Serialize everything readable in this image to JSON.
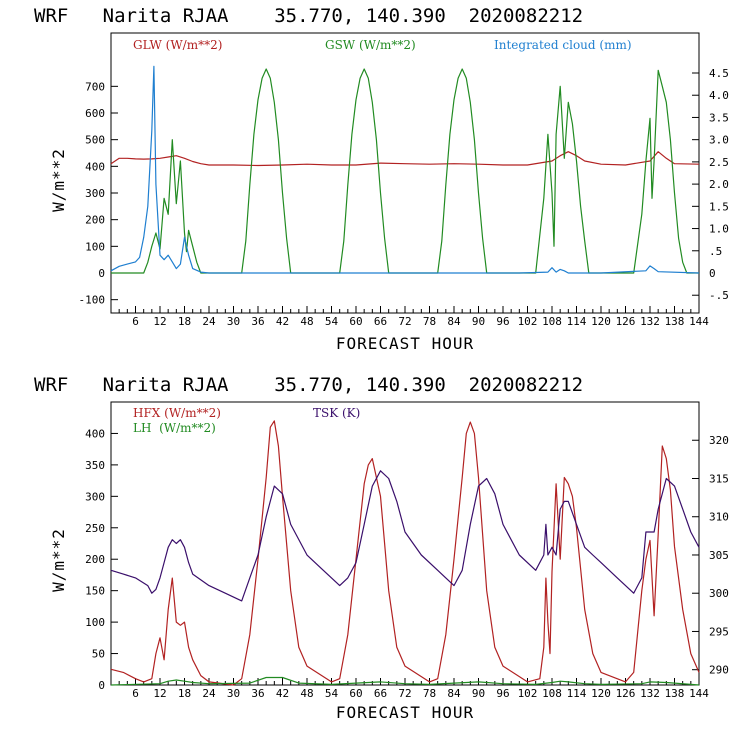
{
  "chart_data": [
    {
      "type": "line",
      "title": "WRF   Narita RJAA    35.770, 140.390  2020082212",
      "xlabel": "FORECAST HOUR",
      "ylabel": "W/m**2",
      "xlim": [
        0,
        144
      ],
      "ylim": [
        -150,
        900
      ],
      "y2lim": [
        -0.9,
        5.4
      ],
      "x_ticks": [
        6,
        12,
        18,
        24,
        30,
        36,
        42,
        48,
        54,
        60,
        66,
        72,
        78,
        84,
        90,
        96,
        102,
        108,
        114,
        120,
        126,
        132,
        138,
        144
      ],
      "y_ticks": [
        -100,
        0,
        100,
        200,
        300,
        400,
        500,
        600,
        700
      ],
      "y2_ticks": [
        -0.5,
        0,
        0.5,
        1.0,
        1.5,
        2.0,
        2.5,
        3.0,
        3.5,
        4.0,
        4.5
      ],
      "y2_tick_labels": [
        "-.5",
        "0",
        ".5",
        "1.0",
        "1.5",
        "2.0",
        "2.5",
        "3.0",
        "3.5",
        "4.0",
        "4.5"
      ],
      "series": [
        {
          "name": "GLW (W/m**2)",
          "axis": "left",
          "color": "#b22222",
          "x": [
            0,
            2,
            4,
            6,
            8,
            10,
            12,
            14,
            16,
            18,
            20,
            22,
            24,
            30,
            36,
            42,
            48,
            54,
            60,
            66,
            72,
            78,
            84,
            90,
            96,
            102,
            108,
            110,
            112,
            114,
            116,
            120,
            126,
            132,
            134,
            136,
            138,
            144
          ],
          "y": [
            410,
            430,
            430,
            428,
            427,
            428,
            430,
            435,
            440,
            430,
            418,
            410,
            405,
            405,
            403,
            405,
            408,
            405,
            405,
            412,
            410,
            408,
            410,
            408,
            405,
            405,
            420,
            440,
            455,
            440,
            420,
            408,
            405,
            420,
            455,
            430,
            410,
            408
          ]
        },
        {
          "name": "GSW (W/m**2)",
          "axis": "left",
          "color": "#228b22",
          "x": [
            0,
            8,
            9,
            10,
            11,
            12,
            13,
            14,
            15,
            16,
            17,
            18,
            18.5,
            19,
            20,
            21,
            22,
            32,
            33,
            34,
            35,
            36,
            37,
            38,
            39,
            40,
            41,
            42,
            43,
            44,
            45,
            56,
            57,
            58,
            59,
            60,
            61,
            62,
            63,
            64,
            65,
            66,
            67,
            68,
            69,
            80,
            81,
            82,
            83,
            84,
            85,
            86,
            87,
            88,
            89,
            90,
            91,
            92,
            93,
            104,
            106,
            107,
            108,
            108.5,
            109,
            110,
            111,
            112,
            113,
            114,
            115,
            116,
            117,
            128,
            130,
            131,
            132,
            132.5,
            133,
            134,
            135,
            136,
            137,
            138,
            139,
            140,
            141,
            144
          ],
          "y": [
            0,
            0,
            40,
            100,
            150,
            90,
            280,
            220,
            500,
            260,
            420,
            150,
            80,
            160,
            100,
            40,
            0,
            0,
            120,
            330,
            520,
            650,
            730,
            765,
            730,
            640,
            500,
            300,
            130,
            0,
            0,
            0,
            120,
            330,
            520,
            650,
            730,
            765,
            730,
            640,
            500,
            300,
            130,
            0,
            0,
            0,
            120,
            330,
            520,
            650,
            730,
            765,
            730,
            640,
            500,
            300,
            130,
            0,
            0,
            0,
            280,
            520,
            300,
            100,
            520,
            700,
            430,
            640,
            560,
            420,
            250,
            120,
            0,
            0,
            220,
            420,
            580,
            280,
            420,
            760,
            700,
            640,
            500,
            300,
            130,
            40,
            0,
            0
          ]
        },
        {
          "name": "Integrated cloud (mm)",
          "axis": "right",
          "color": "#1f7fd0",
          "x": [
            0,
            2,
            4,
            6,
            7,
            8,
            9,
            10,
            10.5,
            11,
            12,
            13,
            14,
            15,
            16,
            17,
            18,
            19,
            20,
            22,
            24,
            40,
            60,
            80,
            100,
            107,
            108,
            109,
            110,
            111,
            112,
            120,
            131,
            132,
            133,
            134,
            144
          ],
          "y": [
            0.05,
            0.15,
            0.2,
            0.25,
            0.35,
            0.8,
            1.5,
            3.2,
            4.65,
            2.0,
            0.4,
            0.3,
            0.4,
            0.25,
            0.1,
            0.2,
            0.8,
            0.4,
            0.1,
            0.02,
            0.0,
            0.0,
            0.0,
            0.0,
            0.0,
            0.02,
            0.12,
            0.02,
            0.08,
            0.05,
            0.0,
            0.0,
            0.05,
            0.16,
            0.1,
            0.03,
            0.0
          ]
        }
      ]
    },
    {
      "type": "line",
      "title": "WRF   Narita RJAA    35.770, 140.390  2020082212",
      "xlabel": "FORECAST HOUR",
      "ylabel": "W/m**2",
      "xlim": [
        0,
        144
      ],
      "ylim": [
        0,
        450
      ],
      "y2lim": [
        288,
        325
      ],
      "x_ticks": [
        6,
        12,
        18,
        24,
        30,
        36,
        42,
        48,
        54,
        60,
        66,
        72,
        78,
        84,
        90,
        96,
        102,
        108,
        114,
        120,
        126,
        132,
        138,
        144
      ],
      "y_ticks": [
        0,
        50,
        100,
        150,
        200,
        250,
        300,
        350,
        400
      ],
      "y2_ticks": [
        290,
        295,
        300,
        305,
        310,
        315,
        320
      ],
      "y2_tick_labels": [
        "290",
        "295",
        "300",
        "305",
        "310",
        "315",
        "320"
      ],
      "series": [
        {
          "name": "HFX (W/m**2)",
          "axis": "left",
          "color": "#b22222",
          "x": [
            0,
            3,
            6,
            8,
            10,
            11,
            12,
            13,
            14,
            15,
            16,
            17,
            18,
            19,
            20,
            22,
            24,
            30,
            32,
            34,
            36,
            38,
            39,
            40,
            41,
            42,
            44,
            46,
            48,
            54,
            56,
            58,
            60,
            62,
            63,
            64,
            66,
            68,
            70,
            72,
            78,
            80,
            82,
            84,
            86,
            87,
            88,
            89,
            90,
            92,
            94,
            96,
            102,
            105,
            106,
            106.5,
            107,
            107.5,
            108,
            109,
            110,
            111,
            112,
            113,
            114,
            116,
            118,
            120,
            126,
            128,
            130,
            131,
            132,
            133,
            134,
            135,
            136,
            137,
            138,
            140,
            142,
            144
          ],
          "y": [
            25,
            20,
            10,
            5,
            10,
            50,
            75,
            40,
            120,
            170,
            100,
            95,
            100,
            60,
            40,
            15,
            5,
            0,
            10,
            80,
            200,
            330,
            410,
            420,
            380,
            300,
            150,
            60,
            30,
            5,
            10,
            80,
            200,
            320,
            350,
            360,
            300,
            150,
            60,
            30,
            5,
            10,
            80,
            200,
            330,
            400,
            418,
            400,
            330,
            150,
            60,
            30,
            5,
            10,
            60,
            170,
            100,
            50,
            180,
            320,
            200,
            330,
            320,
            300,
            250,
            120,
            50,
            20,
            5,
            20,
            150,
            200,
            230,
            110,
            240,
            380,
            360,
            310,
            220,
            120,
            50,
            20
          ]
        },
        {
          "name": "LH  (W/m**2)",
          "axis": "left",
          "color": "#228b22",
          "x": [
            0,
            12,
            14,
            16,
            18,
            20,
            24,
            34,
            38,
            42,
            46,
            54,
            60,
            66,
            72,
            78,
            84,
            90,
            96,
            104,
            108,
            110,
            112,
            116,
            120,
            130,
            132,
            136,
            144
          ],
          "y": [
            0,
            2,
            6,
            8,
            6,
            4,
            2,
            3,
            12,
            12,
            3,
            1,
            3,
            5,
            2,
            1,
            3,
            5,
            2,
            1,
            4,
            6,
            5,
            2,
            1,
            2,
            5,
            4,
            0
          ]
        },
        {
          "name": "TSK (K)",
          "axis": "right",
          "color": "#3a0f6b",
          "x": [
            0,
            3,
            6,
            9,
            10,
            11,
            12,
            13,
            14,
            15,
            16,
            17,
            18,
            19,
            20,
            24,
            28,
            32,
            34,
            36,
            38,
            40,
            42,
            44,
            48,
            52,
            54,
            56,
            58,
            60,
            62,
            64,
            66,
            68,
            70,
            72,
            76,
            80,
            82,
            84,
            86,
            88,
            90,
            92,
            94,
            96,
            100,
            104,
            106,
            106.5,
            107,
            108,
            109,
            110,
            111,
            112,
            114,
            116,
            118,
            120,
            124,
            128,
            130,
            131,
            132,
            133,
            134,
            136,
            138,
            140,
            142,
            144
          ],
          "y": [
            303,
            302.5,
            302,
            301,
            300,
            300.5,
            302,
            304,
            306,
            307,
            306.5,
            307,
            306,
            304,
            302.5,
            301,
            300,
            299,
            302,
            305,
            310,
            314,
            313,
            309,
            305,
            303,
            302,
            301,
            302,
            304,
            309,
            314,
            316,
            315,
            312,
            308,
            305,
            303,
            302,
            301,
            303,
            309,
            314,
            315,
            313,
            309,
            305,
            303,
            305,
            309,
            305,
            306,
            305,
            311,
            312,
            312,
            309,
            306,
            305,
            304,
            302,
            300,
            302,
            308,
            308,
            308,
            311,
            315,
            314,
            311,
            308,
            306
          ]
        }
      ]
    }
  ]
}
